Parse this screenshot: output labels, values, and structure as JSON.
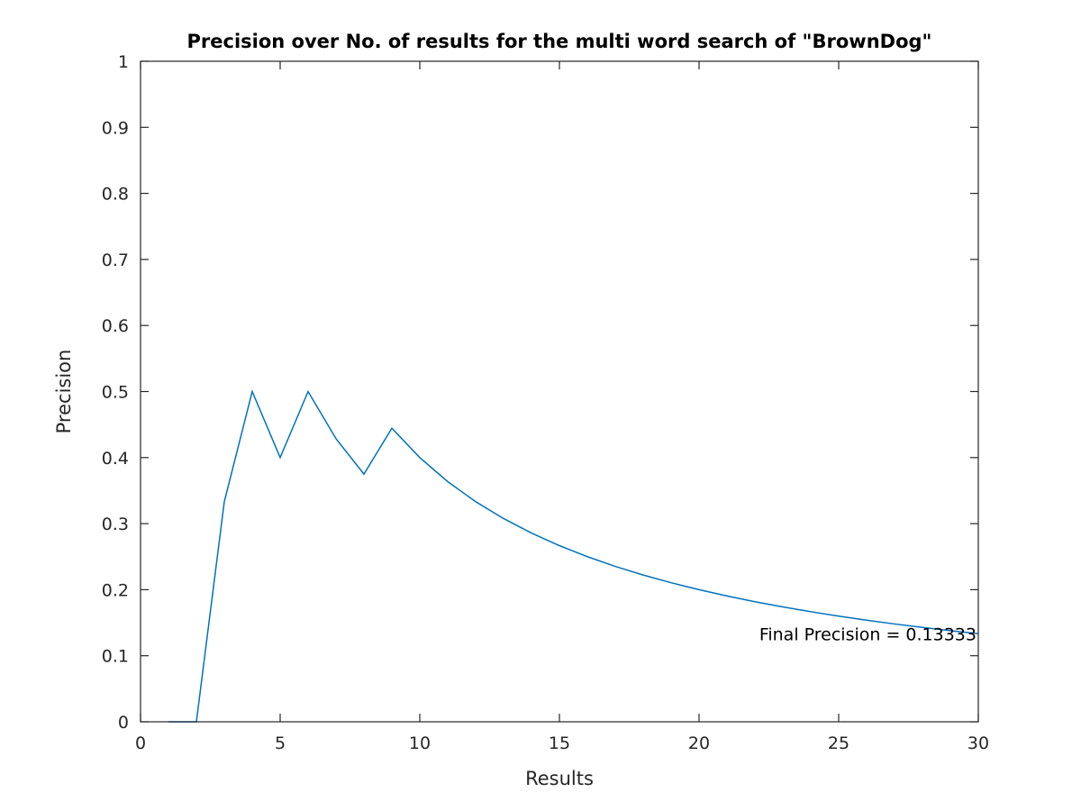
{
  "chart_data": {
    "type": "line",
    "title": "Precision over No. of results for the multi word search of \"BrownDog\"",
    "xlabel": "Results",
    "ylabel": "Precision",
    "xlim": [
      0,
      30
    ],
    "ylim": [
      0,
      1
    ],
    "x_ticks": [
      {
        "value": 0,
        "label": "0"
      },
      {
        "value": 5,
        "label": "5"
      },
      {
        "value": 10,
        "label": "10"
      },
      {
        "value": 15,
        "label": "15"
      },
      {
        "value": 20,
        "label": "20"
      },
      {
        "value": 25,
        "label": "25"
      },
      {
        "value": 30,
        "label": "30"
      }
    ],
    "y_ticks": [
      {
        "value": 0,
        "label": "0"
      },
      {
        "value": 0.1,
        "label": "0.1"
      },
      {
        "value": 0.2,
        "label": "0.2"
      },
      {
        "value": 0.3,
        "label": "0.3"
      },
      {
        "value": 0.4,
        "label": "0.4"
      },
      {
        "value": 0.5,
        "label": "0.5"
      },
      {
        "value": 0.6,
        "label": "0.6"
      },
      {
        "value": 0.7,
        "label": "0.7"
      },
      {
        "value": 0.8,
        "label": "0.8"
      },
      {
        "value": 0.9,
        "label": "0.9"
      },
      {
        "value": 1,
        "label": "1"
      }
    ],
    "grid": false,
    "series": [
      {
        "color": "#0072bd",
        "x": [
          1,
          2,
          3,
          4,
          5,
          6,
          7,
          8,
          9,
          10,
          11,
          12,
          13,
          14,
          15,
          16,
          17,
          18,
          19,
          20,
          21,
          22,
          23,
          24,
          25,
          26,
          27,
          28,
          29,
          30
        ],
        "y": [
          0,
          0,
          0.3333,
          0.5,
          0.4,
          0.5,
          0.4286,
          0.375,
          0.4444,
          0.4,
          0.3636,
          0.3333,
          0.3077,
          0.2857,
          0.2667,
          0.25,
          0.2353,
          0.2222,
          0.2105,
          0.2,
          0.1905,
          0.1818,
          0.1739,
          0.1667,
          0.16,
          0.1538,
          0.1481,
          0.1429,
          0.1379,
          0.1333
        ]
      }
    ],
    "annotations": [
      {
        "text": "Final Precision = 0.13333",
        "x": 30,
        "y": 0.13333
      }
    ]
  }
}
